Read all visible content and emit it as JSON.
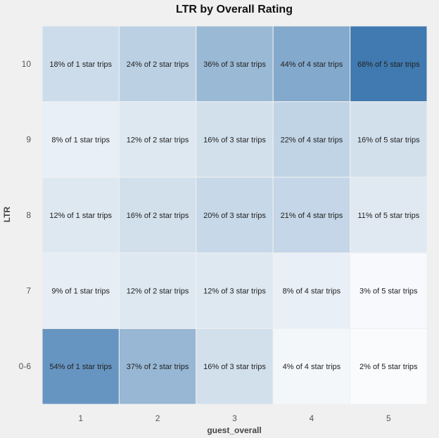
{
  "chart_data": {
    "type": "heatmap",
    "title": "LTR by Overall Rating",
    "xlabel": "guest_overall",
    "ylabel": "LTR",
    "x_categories": [
      "1",
      "2",
      "3",
      "4",
      "5"
    ],
    "y_categories": [
      "10",
      "9",
      "8",
      "7",
      "0-6"
    ],
    "values": [
      [
        18,
        24,
        36,
        44,
        68
      ],
      [
        8,
        12,
        16,
        22,
        16
      ],
      [
        12,
        16,
        20,
        21,
        11
      ],
      [
        9,
        12,
        12,
        8,
        3
      ],
      [
        54,
        37,
        16,
        4,
        2
      ]
    ],
    "labels": [
      [
        "18% of 1 star trips",
        "24% of 2 star trips",
        "36% of 3 star trips",
        "44% of 4 star trips",
        "68% of 5 star trips"
      ],
      [
        "8% of 1 star trips",
        "12% of 2 star trips",
        "16% of 3 star trips",
        "22% of 4 star trips",
        "16% of 5 star trips"
      ],
      [
        "12% of 1 star trips",
        "16% of 2 star trips",
        "20% of 3 star trips",
        "21% of 4 star trips",
        "11% of 5 star trips"
      ],
      [
        "9% of 1 star trips",
        "12% of 2 star trips",
        "12% of 3 star trips",
        "8% of 4 star trips",
        "3% of 5 star trips"
      ],
      [
        "54% of 1 star trips",
        "37% of 2 star trips",
        "16% of 3 star trips",
        "4% of 4 star trips",
        "2% of 5 star trips"
      ]
    ],
    "value_range": [
      0,
      70
    ],
    "color_low": "#ffffff",
    "color_high": "#3a76ae"
  }
}
